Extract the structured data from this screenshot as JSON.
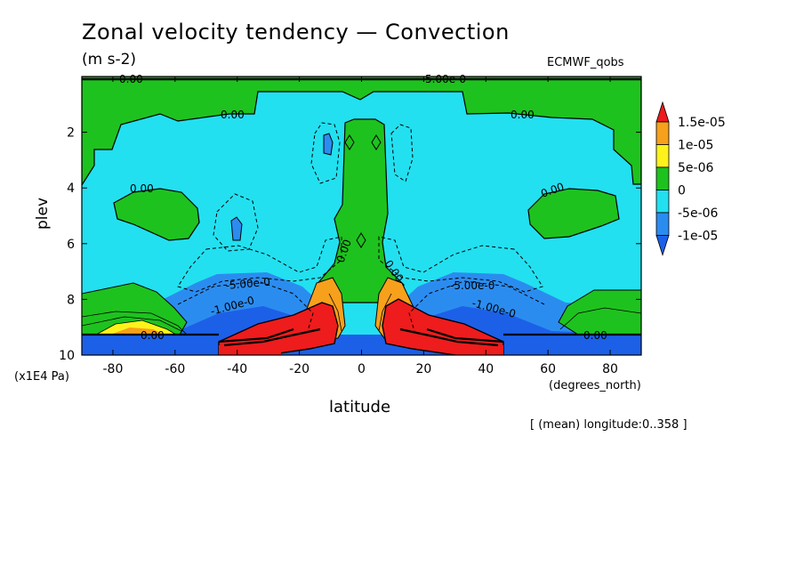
{
  "chart_data": {
    "type": "contour",
    "title": "Zonal velocity tendency — Convection",
    "units": "(m s-2)",
    "source": "ECMWF_qobs",
    "xlabel": "latitude",
    "x_units": "(degrees_north)",
    "ylabel": "plev",
    "y_units": "(x1E4 Pa)",
    "footnote": "[ (mean) longitude:0..358 ]",
    "xlim": [
      -90,
      90
    ],
    "ylim": [
      10,
      0
    ],
    "x_ticks": [
      -80,
      -60,
      -40,
      -20,
      0,
      20,
      40,
      60,
      80
    ],
    "y_ticks": [
      2,
      4,
      6,
      8,
      10
    ],
    "colorbar": {
      "levels": [
        "1.5e-05",
        "1e-05",
        "5e-06",
        "0",
        "-5e-06",
        "-1e-05"
      ],
      "colors": [
        "#ee1c1c",
        "#f7a01b",
        "#fff21b",
        "#1ec21e",
        "#22e0f0",
        "#2b8cf0",
        "#1c60e8"
      ]
    },
    "contour_labels": [
      "0.00",
      "5.00e-0",
      "-5.00e-0",
      "-1.00e-0",
      "0.00",
      "0.00",
      "0.00",
      "0.00",
      "0.00",
      "0.00",
      "-5.00e-0",
      "-1.00e-0",
      "0.00",
      "0.00"
    ]
  }
}
